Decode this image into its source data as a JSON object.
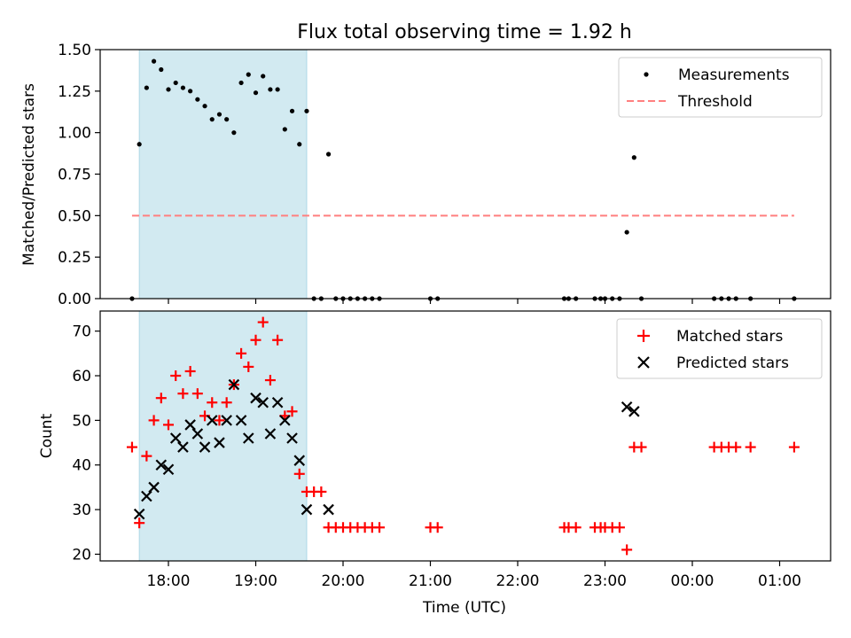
{
  "figure": {
    "title": "Flux total observing time = 1.92 h",
    "colors": {
      "shade": "#add8e6",
      "measure": "#000000",
      "threshold": "#ff7f7f",
      "matched": "#ff0000",
      "predicted": "#000000"
    }
  },
  "chart_data": [
    {
      "type": "scatter",
      "ylabel": "Matched/Predicted stars",
      "xlabel": "",
      "ylim": [
        0,
        1.5
      ],
      "yticks": [
        "0.00",
        "0.25",
        "0.50",
        "0.75",
        "1.00",
        "1.25",
        "1.50"
      ],
      "shaded_span": [
        "17:40",
        "19:35"
      ],
      "threshold": {
        "value": 0.5,
        "x_range": [
          "17:35",
          "01:10"
        ]
      },
      "legend": {
        "position": "top-right",
        "entries": [
          "Measurements",
          "Threshold"
        ]
      },
      "series": [
        {
          "name": "Measurements",
          "points": [
            [
              "17:35",
              0.0
            ],
            [
              "17:40",
              0.93
            ],
            [
              "17:45",
              1.27
            ],
            [
              "17:50",
              1.43
            ],
            [
              "17:55",
              1.38
            ],
            [
              "18:00",
              1.26
            ],
            [
              "18:05",
              1.3
            ],
            [
              "18:10",
              1.27
            ],
            [
              "18:15",
              1.25
            ],
            [
              "18:20",
              1.2
            ],
            [
              "18:25",
              1.16
            ],
            [
              "18:30",
              1.08
            ],
            [
              "18:35",
              1.11
            ],
            [
              "18:40",
              1.08
            ],
            [
              "18:45",
              1.0
            ],
            [
              "18:50",
              1.3
            ],
            [
              "18:55",
              1.35
            ],
            [
              "19:00",
              1.24
            ],
            [
              "19:05",
              1.34
            ],
            [
              "19:10",
              1.26
            ],
            [
              "19:15",
              1.26
            ],
            [
              "19:20",
              1.02
            ],
            [
              "19:25",
              1.13
            ],
            [
              "19:30",
              0.93
            ],
            [
              "19:35",
              1.13
            ],
            [
              "19:40",
              0.0
            ],
            [
              "19:45",
              0.0
            ],
            [
              "19:50",
              0.87
            ],
            [
              "19:55",
              0.0
            ],
            [
              "20:00",
              0.0
            ],
            [
              "20:05",
              0.0
            ],
            [
              "20:10",
              0.0
            ],
            [
              "20:15",
              0.0
            ],
            [
              "20:20",
              0.0
            ],
            [
              "20:25",
              0.0
            ],
            [
              "21:00",
              0.0
            ],
            [
              "21:05",
              0.0
            ],
            [
              "22:32",
              0.0
            ],
            [
              "22:35",
              0.0
            ],
            [
              "22:40",
              0.0
            ],
            [
              "22:53",
              0.0
            ],
            [
              "22:57",
              0.0
            ],
            [
              "23:00",
              0.0
            ],
            [
              "23:05",
              0.0
            ],
            [
              "23:10",
              0.0
            ],
            [
              "23:15",
              0.4
            ],
            [
              "23:20",
              0.85
            ],
            [
              "23:25",
              0.0
            ],
            [
              "00:15",
              0.0
            ],
            [
              "00:20",
              0.0
            ],
            [
              "00:25",
              0.0
            ],
            [
              "00:30",
              0.0
            ],
            [
              "00:40",
              0.0
            ],
            [
              "01:10",
              0.0
            ]
          ]
        }
      ]
    },
    {
      "type": "scatter",
      "ylabel": "Count",
      "xlabel": "Time (UTC)",
      "ylim": [
        18.5,
        74.5
      ],
      "yticks": [
        "20",
        "30",
        "40",
        "50",
        "60",
        "70"
      ],
      "xticks": [
        "18:00",
        "19:00",
        "20:00",
        "21:00",
        "22:00",
        "23:00",
        "00:00",
        "01:00"
      ],
      "shaded_span": [
        "17:40",
        "19:35"
      ],
      "legend": {
        "position": "top-right",
        "entries": [
          "Matched stars",
          "Predicted stars"
        ]
      },
      "series": [
        {
          "name": "Matched stars",
          "points": [
            [
              "17:35",
              44
            ],
            [
              "17:40",
              27
            ],
            [
              "17:45",
              42
            ],
            [
              "17:50",
              50
            ],
            [
              "17:55",
              55
            ],
            [
              "18:00",
              49
            ],
            [
              "18:05",
              60
            ],
            [
              "18:10",
              56
            ],
            [
              "18:15",
              61
            ],
            [
              "18:20",
              56
            ],
            [
              "18:25",
              51
            ],
            [
              "18:30",
              54
            ],
            [
              "18:35",
              50
            ],
            [
              "18:40",
              54
            ],
            [
              "18:45",
              58
            ],
            [
              "18:50",
              65
            ],
            [
              "18:55",
              62
            ],
            [
              "19:00",
              68
            ],
            [
              "19:05",
              72
            ],
            [
              "19:10",
              59
            ],
            [
              "19:15",
              68
            ],
            [
              "19:20",
              51
            ],
            [
              "19:25",
              52
            ],
            [
              "19:30",
              38
            ],
            [
              "19:35",
              34
            ],
            [
              "19:40",
              34
            ],
            [
              "19:45",
              34
            ],
            [
              "19:50",
              26
            ],
            [
              "19:55",
              26
            ],
            [
              "20:00",
              26
            ],
            [
              "20:05",
              26
            ],
            [
              "20:10",
              26
            ],
            [
              "20:15",
              26
            ],
            [
              "20:20",
              26
            ],
            [
              "20:25",
              26
            ],
            [
              "21:00",
              26
            ],
            [
              "21:05",
              26
            ],
            [
              "22:32",
              26
            ],
            [
              "22:35",
              26
            ],
            [
              "22:40",
              26
            ],
            [
              "22:53",
              26
            ],
            [
              "22:57",
              26
            ],
            [
              "23:00",
              26
            ],
            [
              "23:05",
              26
            ],
            [
              "23:10",
              26
            ],
            [
              "23:15",
              21
            ],
            [
              "23:20",
              44
            ],
            [
              "23:25",
              44
            ],
            [
              "00:15",
              44
            ],
            [
              "00:20",
              44
            ],
            [
              "00:25",
              44
            ],
            [
              "00:30",
              44
            ],
            [
              "00:40",
              44
            ],
            [
              "01:10",
              44
            ]
          ]
        },
        {
          "name": "Predicted stars",
          "points": [
            [
              "17:40",
              29
            ],
            [
              "17:45",
              33
            ],
            [
              "17:50",
              35
            ],
            [
              "17:55",
              40
            ],
            [
              "18:00",
              39
            ],
            [
              "18:05",
              46
            ],
            [
              "18:10",
              44
            ],
            [
              "18:15",
              49
            ],
            [
              "18:20",
              47
            ],
            [
              "18:25",
              44
            ],
            [
              "18:30",
              50
            ],
            [
              "18:35",
              45
            ],
            [
              "18:40",
              50
            ],
            [
              "18:45",
              58
            ],
            [
              "18:50",
              50
            ],
            [
              "18:55",
              46
            ],
            [
              "19:00",
              55
            ],
            [
              "19:05",
              54
            ],
            [
              "19:10",
              47
            ],
            [
              "19:15",
              54
            ],
            [
              "19:20",
              50
            ],
            [
              "19:25",
              46
            ],
            [
              "19:30",
              41
            ],
            [
              "19:35",
              30
            ],
            [
              "19:50",
              30
            ],
            [
              "23:15",
              53
            ],
            [
              "23:20",
              52
            ]
          ]
        }
      ]
    }
  ]
}
